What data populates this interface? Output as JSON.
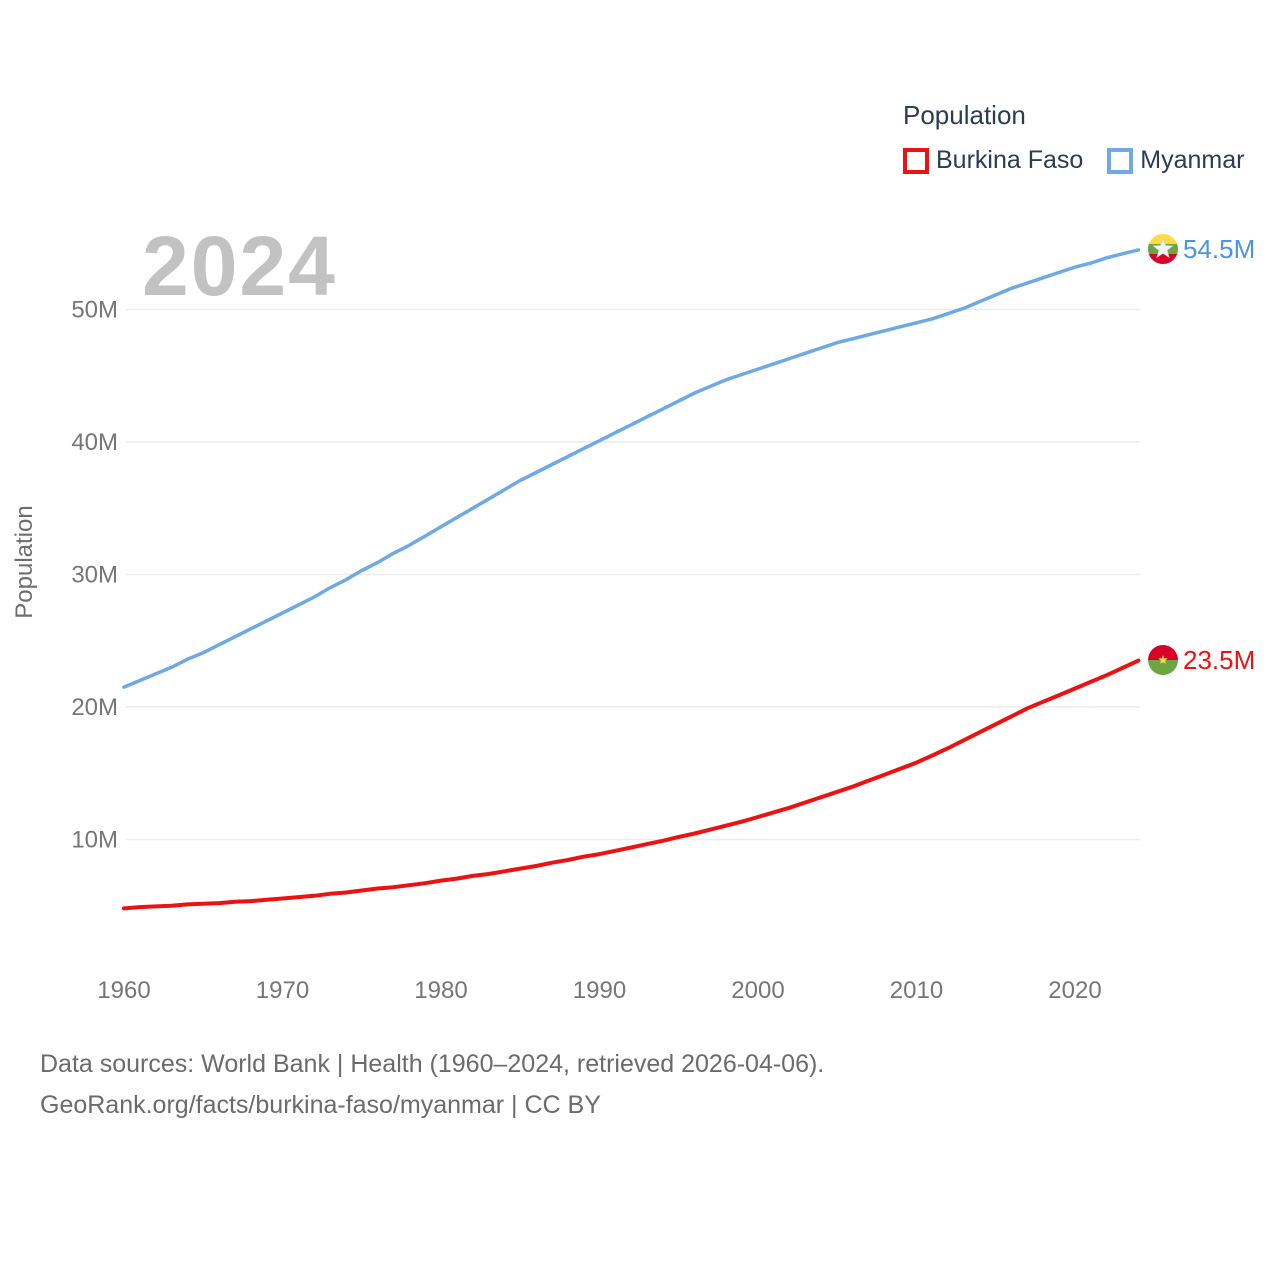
{
  "watermark": "2024",
  "legend": {
    "title": "Population",
    "items": [
      {
        "label": "Burkina Faso",
        "color": "#ee1111"
      },
      {
        "label": "Myanmar",
        "color": "#6fa8e6"
      }
    ]
  },
  "footer": {
    "line1": "Data sources: World Bank | Health (1960–2024, retrieved 2026-04-06).",
    "line2": "GeoRank.org/facts/burkina-faso/myanmar | CC BY"
  },
  "chart_data": {
    "type": "line",
    "title": "Population",
    "xlabel": "",
    "ylabel": "Population",
    "x_start": 1960,
    "x_end": 2024,
    "ylim": [
      0,
      56
    ],
    "grid": true,
    "legend_position": "top-right",
    "x_ticks": [
      {
        "value": 1960,
        "label": "1960"
      },
      {
        "value": 1970,
        "label": "1970"
      },
      {
        "value": 1980,
        "label": "1980"
      },
      {
        "value": 1990,
        "label": "1990"
      },
      {
        "value": 2000,
        "label": "2000"
      },
      {
        "value": 2010,
        "label": "2010"
      },
      {
        "value": 2020,
        "label": "2020"
      }
    ],
    "y_ticks": [
      {
        "value": 10,
        "label": "10M"
      },
      {
        "value": 20,
        "label": "20M"
      },
      {
        "value": 30,
        "label": "30M"
      },
      {
        "value": 40,
        "label": "40M"
      },
      {
        "value": 50,
        "label": "50M"
      }
    ],
    "series": [
      {
        "name": "Burkina Faso",
        "color": "#ee1111",
        "stroke_width": 4,
        "end_label": "23.5M",
        "end_value_millions": 23.5,
        "flag": "burkina-faso",
        "start_year": 1960,
        "values_millions": [
          4.8,
          4.9,
          4.95,
          5.0,
          5.1,
          5.15,
          5.2,
          5.3,
          5.35,
          5.45,
          5.55,
          5.65,
          5.75,
          5.9,
          6.0,
          6.15,
          6.3,
          6.4,
          6.55,
          6.7,
          6.9,
          7.05,
          7.25,
          7.4,
          7.6,
          7.8,
          8.0,
          8.25,
          8.45,
          8.7,
          8.9,
          9.15,
          9.4,
          9.65,
          9.9,
          10.2,
          10.45,
          10.75,
          11.05,
          11.35,
          11.7,
          12.05,
          12.4,
          12.8,
          13.2,
          13.6,
          14.0,
          14.45,
          14.9,
          15.35,
          15.8,
          16.35,
          16.9,
          17.5,
          18.1,
          18.7,
          19.3,
          19.9,
          20.4,
          20.9,
          21.4,
          21.9,
          22.4,
          22.95,
          23.5
        ]
      },
      {
        "name": "Myanmar",
        "color": "#6fa8e6",
        "stroke_width": 3.5,
        "end_label": "54.5M",
        "end_value_millions": 54.5,
        "flag": "myanmar",
        "start_year": 1960,
        "values_millions": [
          21.5,
          22.0,
          22.5,
          23.0,
          23.6,
          24.1,
          24.7,
          25.3,
          25.9,
          26.5,
          27.1,
          27.7,
          28.3,
          29.0,
          29.6,
          30.3,
          30.9,
          31.6,
          32.2,
          32.9,
          33.6,
          34.3,
          35.0,
          35.7,
          36.4,
          37.1,
          37.7,
          38.3,
          38.9,
          39.5,
          40.1,
          40.7,
          41.3,
          41.9,
          42.5,
          43.1,
          43.7,
          44.2,
          44.7,
          45.1,
          45.5,
          45.9,
          46.3,
          46.7,
          47.1,
          47.5,
          47.8,
          48.1,
          48.4,
          48.7,
          49.0,
          49.3,
          49.7,
          50.1,
          50.6,
          51.1,
          51.6,
          52.0,
          52.4,
          52.8,
          53.2,
          53.5,
          53.9,
          54.2,
          54.5
        ]
      }
    ]
  }
}
